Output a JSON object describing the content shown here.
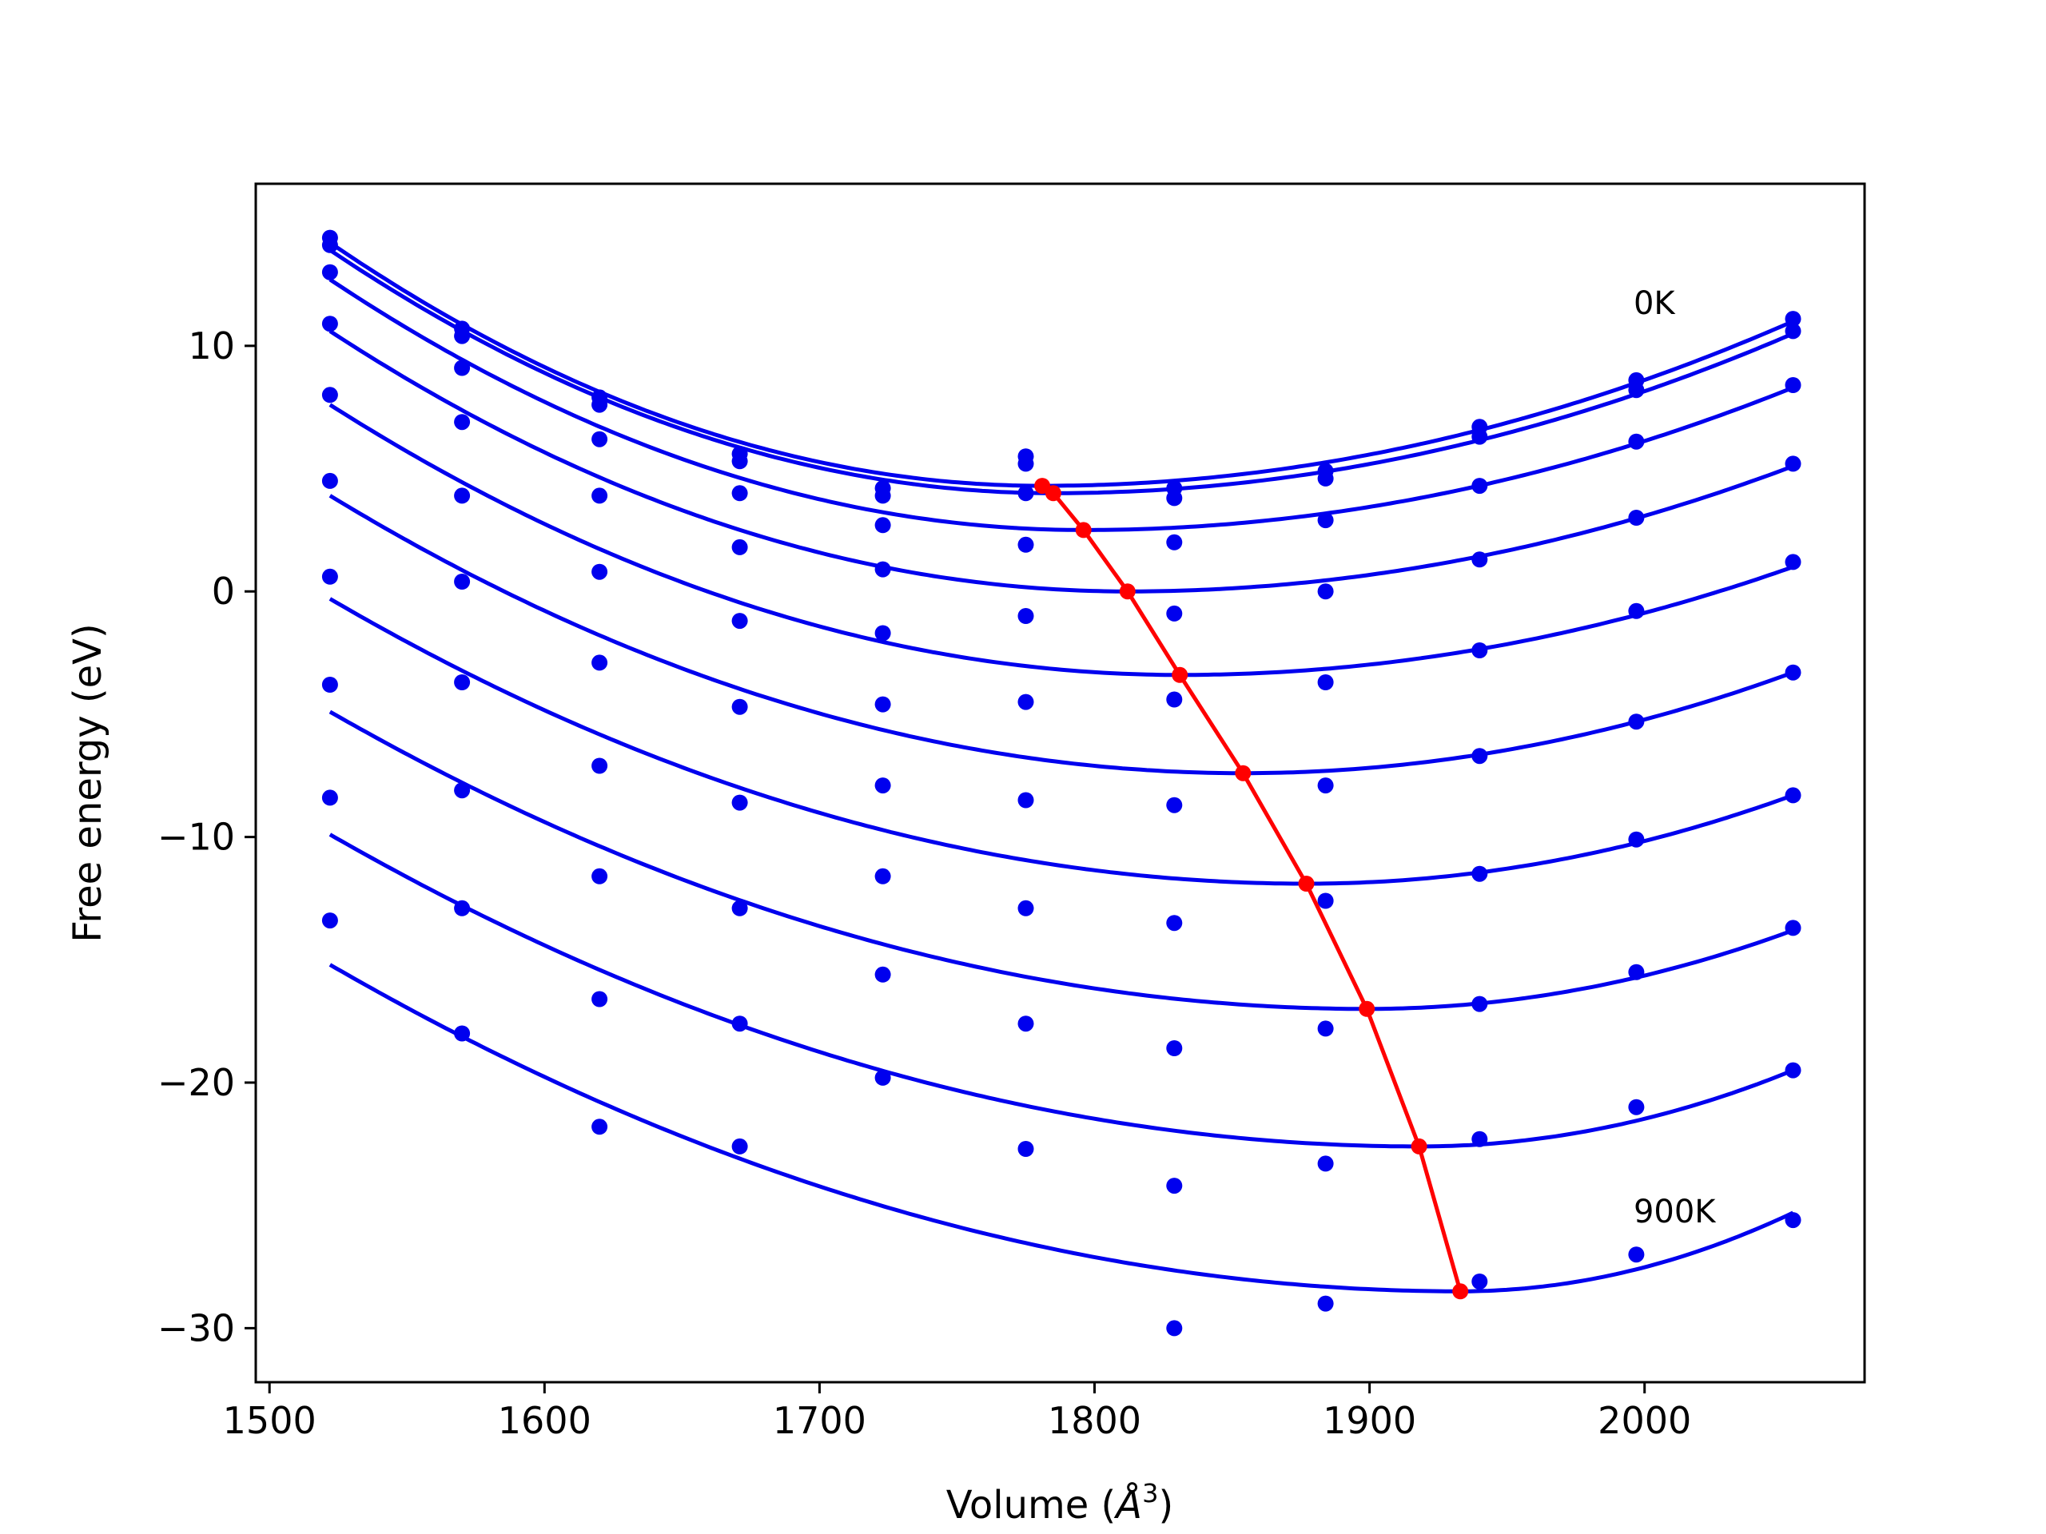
{
  "chart_data": {
    "type": "scatter",
    "title": "",
    "xlabel_text": "Volume (",
    "xlabel_unit": "Å",
    "xlabel_power": "3",
    "xlabel_close": ")",
    "ylabel": "Free energy (eV)",
    "xlim": [
      1495,
      2080
    ],
    "ylim": [
      -32.2,
      16.6
    ],
    "x_ticks": [
      1500,
      1600,
      1700,
      1800,
      1900,
      2000
    ],
    "y_ticks": [
      10,
      0,
      -10,
      -20,
      -30
    ],
    "y_tick_labels": [
      "10",
      "0",
      "−10",
      "−20",
      "−30"
    ],
    "grid": false,
    "annotations": [
      {
        "text": "0K",
        "x": 1996,
        "y": 11.3
      },
      {
        "text": "900K",
        "x": 1996,
        "y": -25.7
      }
    ],
    "colors": {
      "points": "#0000ee",
      "curves": "#0000ee",
      "minima": "#ff0000",
      "axes": "#000000"
    },
    "volumes": [
      1522,
      1570,
      1620,
      1671,
      1723,
      1775,
      1829,
      1884,
      1940,
      1997,
      2054
    ],
    "points": [
      [
        14.4,
        10.7,
        7.9,
        5.6,
        4.2,
        5.5,
        4.2,
        4.9,
        6.7,
        8.6,
        11.1
      ],
      [
        14.1,
        10.4,
        7.6,
        5.3,
        3.9,
        5.2,
        3.8,
        4.6,
        6.3,
        8.2,
        10.6
      ],
      [
        13.0,
        9.1,
        6.2,
        4.0,
        2.7,
        4.0,
        2.0,
        2.9,
        4.3,
        6.1,
        8.4
      ],
      [
        10.9,
        6.9,
        3.9,
        1.8,
        0.9,
        1.9,
        -0.9,
        0.0,
        1.3,
        3.0,
        5.2
      ],
      [
        8.0,
        3.9,
        0.8,
        -1.2,
        -1.7,
        -1.0,
        -4.4,
        -3.7,
        -2.4,
        -0.8,
        1.2
      ],
      [
        4.5,
        0.4,
        -2.9,
        -4.7,
        -4.6,
        -4.5,
        -8.7,
        -7.9,
        -6.7,
        -5.3,
        -3.3
      ],
      [
        0.6,
        -3.7,
        -7.1,
        -8.6,
        -7.9,
        -8.5,
        -13.5,
        -12.6,
        -11.5,
        -10.1,
        -8.3
      ],
      [
        -3.8,
        -8.1,
        -11.6,
        -12.9,
        -11.6,
        -12.9,
        -18.6,
        -17.8,
        -16.8,
        -15.5,
        -13.7
      ],
      [
        -8.4,
        -12.9,
        -16.6,
        -17.6,
        -15.6,
        -17.6,
        -24.2,
        -23.3,
        -22.3,
        -21.0,
        -19.5
      ],
      [
        -13.4,
        -18.0,
        -21.8,
        -22.6,
        -19.8,
        -22.7,
        -30.0,
        -29.0,
        -28.1,
        -27.0,
        -25.6
      ]
    ],
    "minima": [
      {
        "x": 1781,
        "y": 4.3
      },
      {
        "x": 1785,
        "y": 4.0
      },
      {
        "x": 1796,
        "y": 2.5
      },
      {
        "x": 1812,
        "y": 0.0
      },
      {
        "x": 1831,
        "y": -3.4
      },
      {
        "x": 1854,
        "y": -7.4
      },
      {
        "x": 1877,
        "y": -11.9
      },
      {
        "x": 1899,
        "y": -17.0
      },
      {
        "x": 1918,
        "y": -22.6
      },
      {
        "x": 1933,
        "y": -28.5
      }
    ],
    "curve_ends": [
      {
        "left": 14.2,
        "right": 11.0
      },
      {
        "left": 13.9,
        "right": 10.5
      },
      {
        "left": 12.7,
        "right": 8.3
      },
      {
        "left": 10.6,
        "right": 5.1
      },
      {
        "left": 7.6,
        "right": 1.0
      },
      {
        "left": 3.9,
        "right": -3.3
      },
      {
        "left": -0.3,
        "right": -8.3
      },
      {
        "left": -4.9,
        "right": -13.8
      },
      {
        "left": -9.9,
        "right": -19.5
      },
      {
        "left": -15.2,
        "right": -25.3
      }
    ]
  }
}
